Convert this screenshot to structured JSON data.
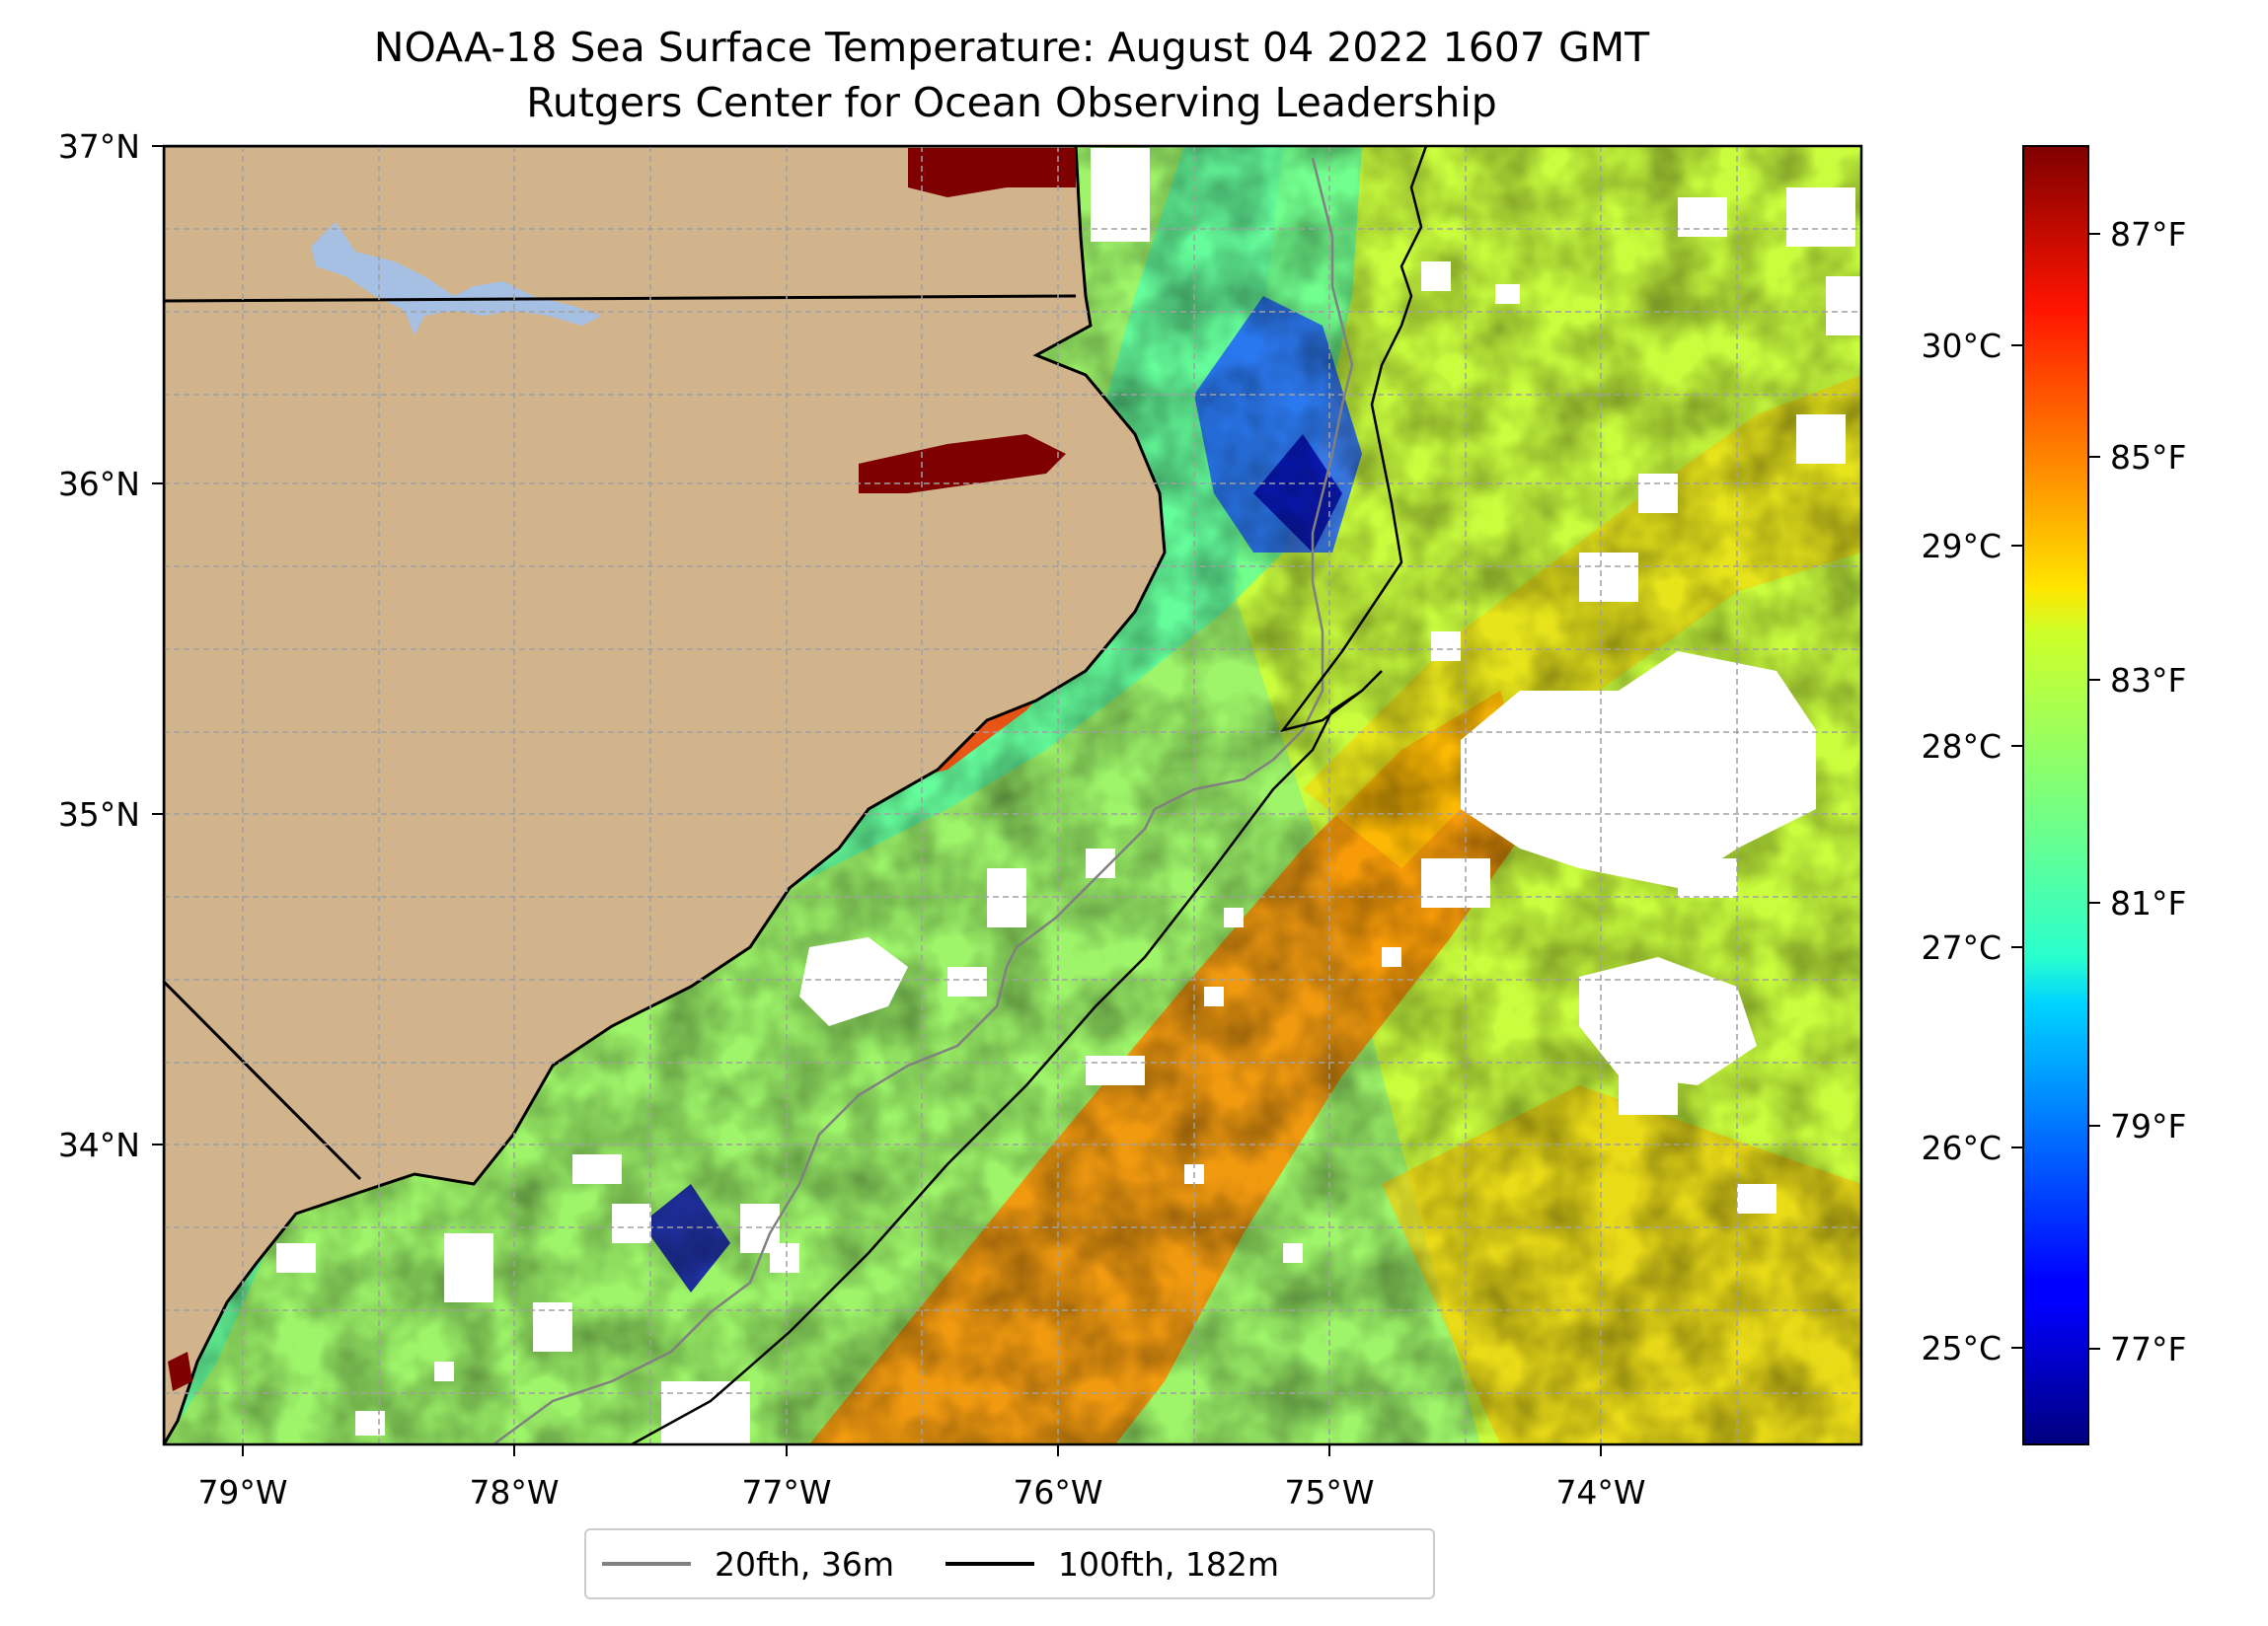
{
  "title": {
    "line1": "NOAA-18 Sea Surface Temperature: August 04 2022 1607 GMT",
    "line2": "Rutgers Center for Ocean Observing Leadership"
  },
  "map": {
    "lon_range": [
      -79.3,
      -73.05
    ],
    "lat_range": [
      33.1,
      37.0
    ],
    "lon_ticks": [
      "79°W",
      "78°W",
      "77°W",
      "76°W",
      "75°W",
      "74°W"
    ],
    "lat_ticks": [
      "37°N",
      "36°N",
      "35°N",
      "34°N"
    ],
    "land_color": "#d2b48c",
    "lake_color": "#a6c0e3",
    "missing_color": "#ffffff",
    "grid": true
  },
  "colorbar": {
    "colormap": "jet",
    "range_c": [
      24.6,
      31.0
    ],
    "celsius_ticks": [
      "30°C",
      "29°C",
      "28°C",
      "27°C",
      "26°C",
      "25°C"
    ],
    "fahrenheit_ticks": [
      "87°F",
      "85°F",
      "83°F",
      "81°F",
      "79°F",
      "77°F"
    ]
  },
  "legend": {
    "items": [
      {
        "label": "20fth, 36m",
        "color": "#808080"
      },
      {
        "label": "100fth, 182m",
        "color": "#000000"
      }
    ]
  }
}
